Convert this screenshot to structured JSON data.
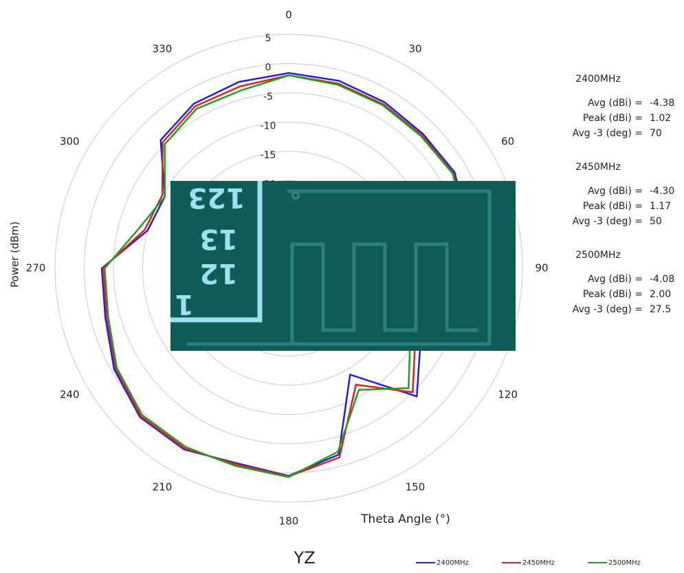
{
  "chart_data": {
    "type": "polar",
    "title": "YZ",
    "r_label": "Power (dBm)",
    "theta_label": "Theta Angle (°)",
    "rlim": [
      -35,
      5
    ],
    "rticks": [
      -20,
      -15,
      -10,
      -5,
      0,
      5
    ],
    "thetaticks": [
      0,
      30,
      60,
      90,
      120,
      150,
      180,
      210,
      240,
      270,
      300,
      330
    ],
    "theta": [
      0,
      15,
      30,
      45,
      60,
      75,
      90,
      105,
      120,
      135,
      150,
      165,
      180,
      195,
      210,
      225,
      240,
      255,
      270,
      285,
      300,
      315,
      330,
      345
    ],
    "series": [
      {
        "name": "2400MHz",
        "color": "#1f1fe0",
        "values": [
          -1.6,
          -1.8,
          -2.2,
          -2.5,
          -2.2,
          -3.5,
          -5.5,
          -7,
          -9,
          -4,
          -14,
          -2,
          0.5,
          -0.5,
          0.8,
          1,
          -0.5,
          -2.5,
          -3,
          -10,
          -10.5,
          -4,
          -2.5,
          -2
        ]
      },
      {
        "name": "2450MHz",
        "color": "#e01f1f",
        "values": [
          -2,
          -2.3,
          -2.6,
          -2.8,
          -2.5,
          -3.6,
          -5.8,
          -7.5,
          -10,
          -5,
          -12,
          -1.5,
          0.6,
          -0.3,
          0.6,
          0.8,
          -0.8,
          -2.8,
          -3.2,
          -9.5,
          -10,
          -4.5,
          -3,
          -2.8
        ]
      },
      {
        "name": "2500MHz",
        "color": "#1f9e1f",
        "values": [
          -2,
          -2.5,
          -2.8,
          -3,
          -2.6,
          -3.8,
          -6,
          -8,
          -11,
          -6,
          -11,
          -2.5,
          0.7,
          0,
          0.3,
          0.5,
          -1,
          -3,
          -3.5,
          -8.5,
          -10.5,
          -5,
          -3.5,
          -3.5
        ]
      }
    ],
    "annotations": [
      {
        "title": "2400MHz",
        "rows": [
          {
            "label": "Avg (dBi) =",
            "value": "-4.38"
          },
          {
            "label": "Peak (dBi) =",
            "value": "1.02"
          },
          {
            "label": "Avg -3 (deg) =",
            "value": "70"
          }
        ]
      },
      {
        "title": "2450MHz",
        "rows": [
          {
            "label": "Avg (dBi) =",
            "value": "-4.30"
          },
          {
            "label": "Peak (dBi) =",
            "value": "1.17"
          },
          {
            "label": "Avg -3 (deg) =",
            "value": "50"
          }
        ]
      },
      {
        "title": "2500MHz",
        "rows": [
          {
            "label": "Avg (dBi) =",
            "value": "-4.08"
          },
          {
            "label": "Peak (dBi) =",
            "value": "2.00"
          },
          {
            "label": "Avg -3 (deg) =",
            "value": "27.5"
          }
        ]
      }
    ],
    "photo_labels": [
      "123",
      "13",
      "12",
      "1"
    ]
  }
}
